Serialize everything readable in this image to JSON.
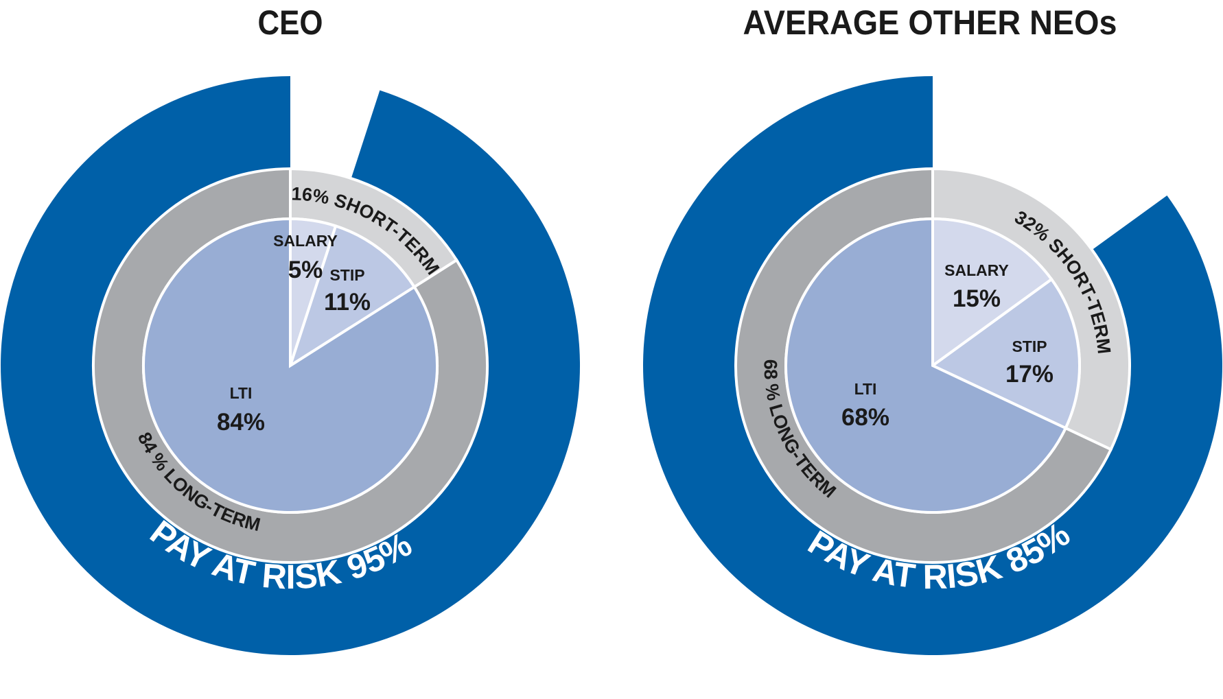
{
  "colors": {
    "pay_at_risk": "#0060A8",
    "short_term_ring": "#D4D5D7",
    "long_term_ring": "#A7A9AC",
    "salary": "#D3D9EC",
    "stip": "#BCC8E4",
    "lti": "#98ADD4",
    "separator": "#FFFFFF"
  },
  "chart_data": [
    {
      "type": "pie",
      "title": "CEO",
      "inner_pie": [
        {
          "name": "SALARY",
          "value": 5,
          "label": "5%"
        },
        {
          "name": "STIP",
          "value": 11,
          "label": "11%"
        },
        {
          "name": "LTI",
          "value": 84,
          "label": "84%"
        }
      ],
      "middle_ring": [
        {
          "name": "SHORT-TERM",
          "value": 16,
          "label": "16% SHORT-TERM"
        },
        {
          "name": "LONG-TERM",
          "value": 84,
          "label": "84 % LONG-TERM"
        }
      ],
      "outer_ring": {
        "name": "PAY AT RISK",
        "value": 95,
        "label": "PAY AT RISK 95%"
      }
    },
    {
      "type": "pie",
      "title": "AVERAGE OTHER NEOs",
      "inner_pie": [
        {
          "name": "SALARY",
          "value": 15,
          "label": "15%"
        },
        {
          "name": "STIP",
          "value": 17,
          "label": "17%"
        },
        {
          "name": "LTI",
          "value": 68,
          "label": "68%"
        }
      ],
      "middle_ring": [
        {
          "name": "SHORT-TERM",
          "value": 32,
          "label": "32% SHORT-TERM"
        },
        {
          "name": "LONG-TERM",
          "value": 68,
          "label": "68 % LONG-TERM"
        }
      ],
      "outer_ring": {
        "name": "PAY AT RISK",
        "value": 85,
        "label": "PAY AT RISK 85%"
      }
    }
  ]
}
